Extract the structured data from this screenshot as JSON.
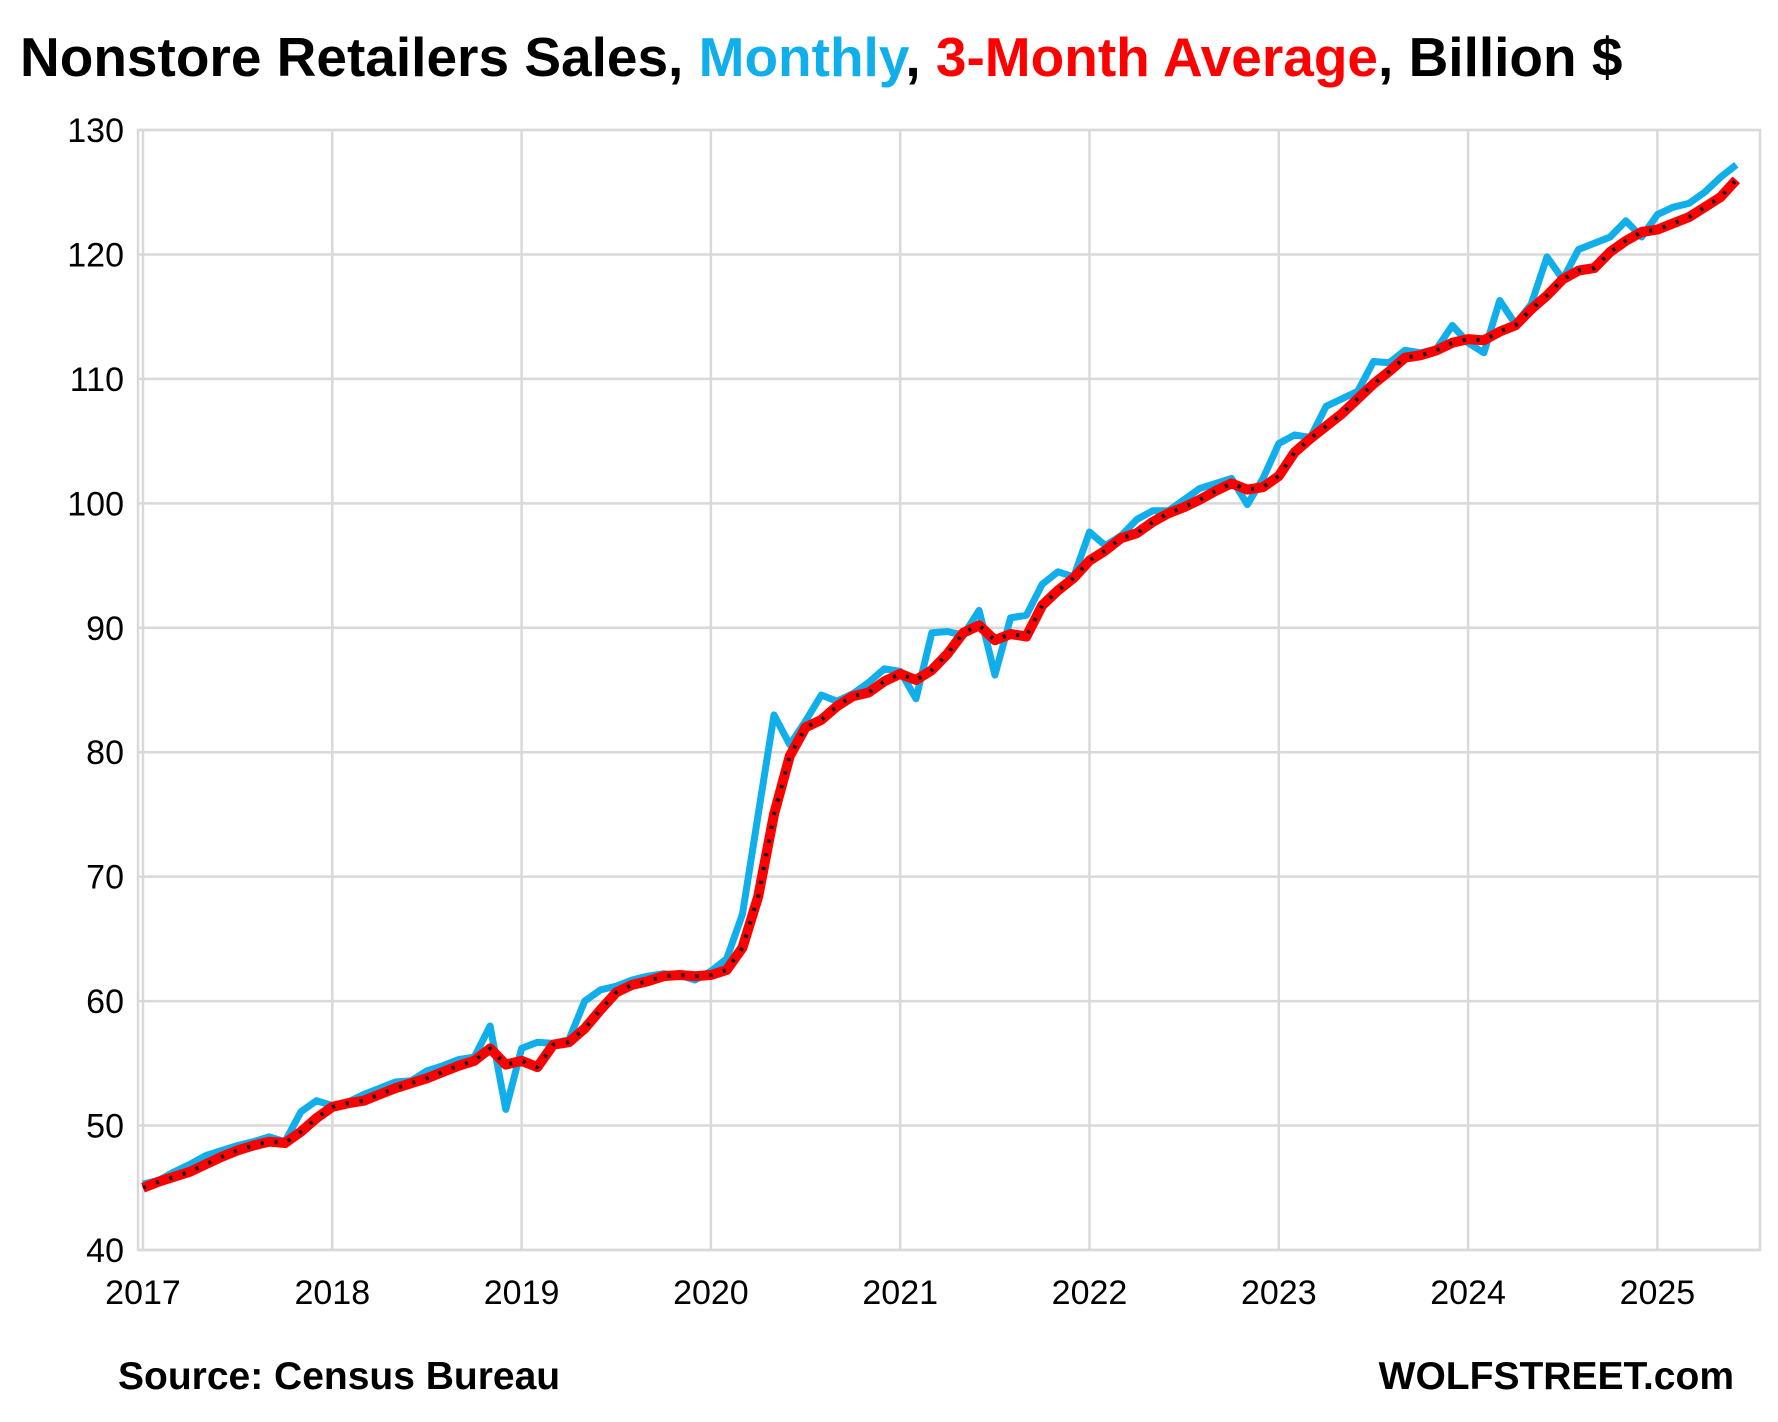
{
  "chart_data": {
    "type": "line",
    "title_parts": [
      {
        "text": "Nonstore Retailers Sales, ",
        "color": "#000000"
      },
      {
        "text": "Monthly",
        "color": "#10AEEA"
      },
      {
        "text": ", ",
        "color": "#000000"
      },
      {
        "text": "3-Month Average",
        "color": "#FF0000"
      },
      {
        "text": ", Billion $",
        "color": "#000000"
      }
    ],
    "x_start": "2017-01",
    "x_tick_labels": [
      "2017",
      "2018",
      "2019",
      "2020",
      "2021",
      "2022",
      "2023",
      "2024",
      "2025"
    ],
    "ylim": [
      40,
      130
    ],
    "y_ticks": [
      40,
      50,
      60,
      70,
      80,
      90,
      100,
      110,
      120,
      130
    ],
    "grid": true,
    "series": [
      {
        "name": "Monthly",
        "color": "#10AEEA",
        "values": [
          45.3,
          45.6,
          46.3,
          46.9,
          47.6,
          48.0,
          48.4,
          48.7,
          49.1,
          48.7,
          51.1,
          52.0,
          51.6,
          51.9,
          52.5,
          53.0,
          53.5,
          53.6,
          54.4,
          54.8,
          55.3,
          55.5,
          58.0,
          51.3,
          56.2,
          56.7,
          56.6,
          56.9,
          60.0,
          60.9,
          61.2,
          61.7,
          62.0,
          62.2,
          62.1,
          61.7,
          62.4,
          63.4,
          67.0,
          75.0,
          83.0,
          80.6,
          82.5,
          84.6,
          84.1,
          84.7,
          85.6,
          86.7,
          86.5,
          84.3,
          89.6,
          89.7,
          89.4,
          91.4,
          86.2,
          90.8,
          91.0,
          93.5,
          94.5,
          94.1,
          97.7,
          96.6,
          97.4,
          98.7,
          99.4,
          99.4,
          100.3,
          101.2,
          101.6,
          102.0,
          99.9,
          102.0,
          104.8,
          105.5,
          105.3,
          107.8,
          108.4,
          109.0,
          111.4,
          111.3,
          112.3,
          112.1,
          112.4,
          114.3,
          112.9,
          112.1,
          116.3,
          114.4,
          116.0,
          119.8,
          118.0,
          120.4,
          120.9,
          121.4,
          122.7,
          121.4,
          123.2,
          123.8,
          124.1,
          125.0,
          126.2,
          127.2
        ]
      },
      {
        "name": "3-Month Average",
        "color": "#FF0000",
        "values": [
          45.0,
          45.5,
          45.9,
          46.3,
          46.9,
          47.5,
          48.0,
          48.4,
          48.7,
          48.6,
          49.5,
          50.6,
          51.5,
          51.8,
          52.0,
          52.5,
          53.0,
          53.4,
          53.8,
          54.3,
          54.8,
          55.2,
          56.2,
          54.9,
          55.2,
          54.7,
          56.5,
          56.7,
          57.8,
          59.3,
          60.7,
          61.3,
          61.6,
          62.0,
          62.1,
          62.0,
          62.1,
          62.5,
          64.3,
          68.4,
          75.0,
          79.7,
          82.0,
          82.6,
          83.7,
          84.5,
          84.8,
          85.7,
          86.3,
          85.8,
          86.6,
          87.9,
          89.6,
          90.2,
          89.0,
          89.5,
          89.3,
          91.8,
          93.0,
          94.0,
          95.4,
          96.2,
          97.2,
          97.6,
          98.5,
          99.2,
          99.7,
          100.3,
          101.0,
          101.6,
          101.1,
          101.3,
          102.2,
          104.1,
          105.2,
          106.2,
          107.2,
          108.4,
          109.6,
          110.6,
          111.7,
          111.9,
          112.3,
          112.9,
          113.2,
          113.1,
          113.8,
          114.3,
          115.6,
          116.7,
          118.0,
          118.7,
          118.9,
          120.2,
          121.1,
          121.8,
          122.0,
          122.5,
          123.0,
          123.8,
          124.6,
          126.0
        ]
      }
    ]
  },
  "footer": {
    "source": "Source: Census Bureau",
    "brand": "WOLFSTREET.com"
  }
}
